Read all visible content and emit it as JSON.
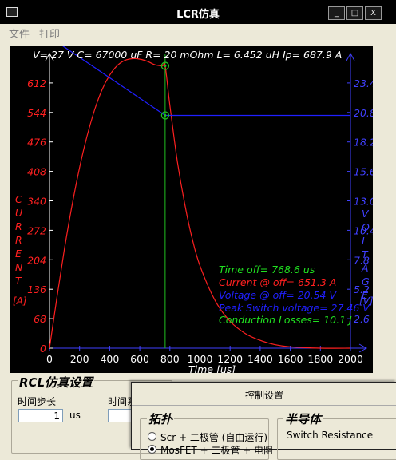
{
  "window": {
    "title": "LCR仿真",
    "controls": {
      "minimize": "_",
      "maximize": "□",
      "close": "X"
    }
  },
  "menu": {
    "items": [
      "文件",
      "打印"
    ]
  },
  "plot": {
    "header": "V= 27 V   C= 67000 uF   R= 20 mOhm    L= 6.452 uH    Ip= 687.9 A",
    "left_axis_label_letters": [
      "C",
      "U",
      "R",
      "R",
      "E",
      "N",
      "T"
    ],
    "left_unit": "[A]",
    "right_axis_label_letters": [
      "V",
      "O",
      "L",
      "T",
      "A",
      "G",
      "E"
    ],
    "right_unit": "[V]",
    "x_axis_label": "Time [us]",
    "x_ticks": [
      "0",
      "200",
      "400",
      "600",
      "800",
      "1000",
      "1200",
      "1400",
      "1600",
      "1800",
      "2000"
    ],
    "left_ticks": [
      "0",
      "68",
      "136",
      "204",
      "272",
      "340",
      "408",
      "476",
      "544",
      "612"
    ],
    "right_ticks": [
      "2.6",
      "5.2",
      "7.8",
      "10.4",
      "13.0",
      "15.6",
      "18.2",
      "20.8",
      "23.4"
    ],
    "annotations": {
      "time_off": "Time off= 768.6 us",
      "current_off": "Current @ off= 651.3 A",
      "voltage_off": "Voltage @ off= 20.54 V",
      "peak_switch": "Peak Switch voltage= 27.46 V",
      "losses": "Conduction Losses= 10.1 J"
    },
    "colors": {
      "current": "#ff2020",
      "voltage": "#2020ff",
      "marker": "#20c020",
      "axis": "#4040ff",
      "text_green": "#20e020"
    }
  },
  "chart_data": {
    "type": "line",
    "x_unit": "us",
    "xlim": [
      0,
      2000
    ],
    "series": [
      {
        "name": "CURRENT",
        "unit": "A",
        "axis": "left",
        "ylim": [
          0,
          680
        ],
        "x": [
          0,
          50,
          100,
          150,
          200,
          250,
          300,
          350,
          400,
          450,
          500,
          550,
          600,
          650,
          700,
          750,
          768.6,
          800,
          850,
          900,
          950,
          1000,
          1100,
          1200,
          1300,
          1400,
          1500,
          1600,
          1800,
          2000
        ],
        "values": [
          0,
          118,
          230,
          330,
          417,
          490,
          550,
          597,
          630,
          652,
          664,
          668,
          667,
          662,
          654,
          651,
          651.3,
          560,
          430,
          330,
          250,
          190,
          110,
          62,
          34,
          18,
          8,
          3,
          0,
          0
        ]
      },
      {
        "name": "VOLTAGE",
        "unit": "V",
        "axis": "right",
        "ylim": [
          0,
          26
        ],
        "x": [
          0,
          768.6,
          2000
        ],
        "values": [
          27.46,
          20.54,
          20.54
        ]
      }
    ],
    "markers": [
      {
        "x": 768.6,
        "y": 651.3,
        "axis": "left"
      },
      {
        "x": 768.6,
        "y": 20.54,
        "axis": "right"
      }
    ]
  },
  "rcl_panel": {
    "title": "RCL仿真设置",
    "step_label": "时间步长",
    "step_value": "1",
    "step_unit": "us",
    "total_label": "时间系"
  },
  "control_dialog": {
    "title": "控制设置",
    "topology_title": "拓扑",
    "topology_options": [
      "Scr + 二极管 (自由运行)",
      "MosFET + 二极管 + 电阻"
    ],
    "semiconductor_title": "半导体",
    "switch_resistance_label": "Switch Resistance"
  }
}
